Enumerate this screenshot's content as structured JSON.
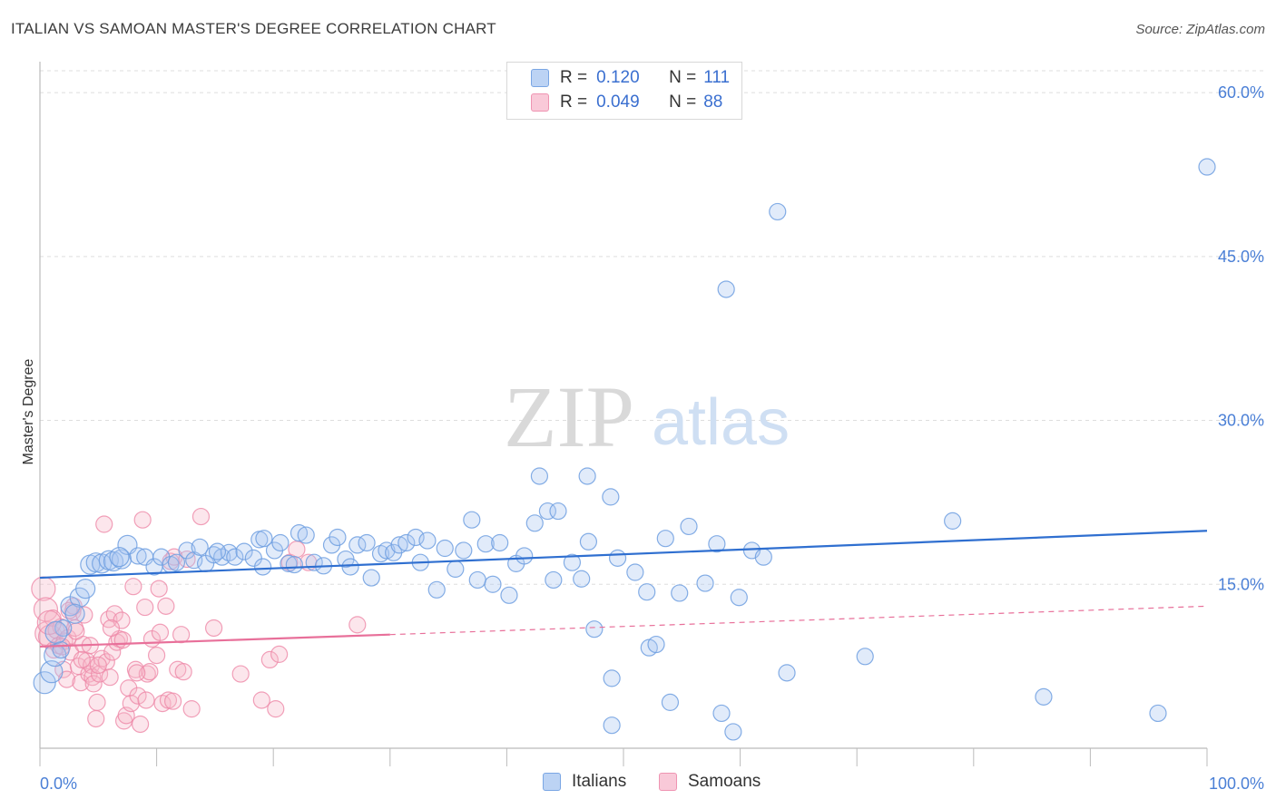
{
  "title": "ITALIAN VS SAMOAN MASTER'S DEGREE CORRELATION CHART",
  "source": "Source: ZipAtlas.com",
  "watermark": {
    "zip": "ZIP",
    "atlas": "atlas"
  },
  "legend": {
    "italians": {
      "r_label": "R =",
      "r_value": "0.120",
      "n_label": "N =",
      "n_value": "111"
    },
    "samoans": {
      "r_label": "R =",
      "r_value": "0.049",
      "n_label": "N =",
      "n_value": "88"
    }
  },
  "bottom_legend": {
    "italians": "Italians",
    "samoans": "Samoans"
  },
  "colors": {
    "italians_fill": "#a9c6f0",
    "italians_stroke": "#6f9fe0",
    "italians_line": "#2f6fd0",
    "samoans_fill": "#f6b6c8",
    "samoans_stroke": "#ee88a8",
    "samoans_line": "#e8709a",
    "tick": "#4a7fd6"
  },
  "chart_data": {
    "type": "scatter",
    "title": "ITALIAN VS SAMOAN MASTER'S DEGREE CORRELATION CHART",
    "xlabel": "",
    "ylabel": "Master's Degree",
    "xlim": [
      0,
      100
    ],
    "ylim": [
      0,
      62
    ],
    "x_tick_labels": [
      "0.0%",
      "100.0%"
    ],
    "y_ticks": [
      15,
      30,
      45,
      60
    ],
    "y_tick_labels": [
      "15.0%",
      "30.0%",
      "45.0%",
      "60.0%"
    ],
    "grid": "horizontal dashed",
    "legend_position": "top-center",
    "series": [
      {
        "name": "Italians",
        "trend": {
          "x": [
            0,
            100
          ],
          "y": [
            15.6,
            19.9
          ],
          "style": "solid"
        },
        "points": [
          [
            0.4,
            6.0
          ],
          [
            1.0,
            7.0
          ],
          [
            1.3,
            8.5
          ],
          [
            1.8,
            9.0
          ],
          [
            2.0,
            11.0
          ],
          [
            2.6,
            13.0
          ],
          [
            3.4,
            13.8
          ],
          [
            3.9,
            14.6
          ],
          [
            4.3,
            16.8
          ],
          [
            4.8,
            17.0
          ],
          [
            5.3,
            16.9
          ],
          [
            5.9,
            17.2
          ],
          [
            6.3,
            17.1
          ],
          [
            7.0,
            17.3
          ],
          [
            7.5,
            18.6
          ],
          [
            8.4,
            17.6
          ],
          [
            9.0,
            17.5
          ],
          [
            9.8,
            16.6
          ],
          [
            10.4,
            17.5
          ],
          [
            11.2,
            16.8
          ],
          [
            11.7,
            17.0
          ],
          [
            12.6,
            18.1
          ],
          [
            13.2,
            17.2
          ],
          [
            13.7,
            18.4
          ],
          [
            14.2,
            16.9
          ],
          [
            14.9,
            17.7
          ],
          [
            15.6,
            17.5
          ],
          [
            16.2,
            17.9
          ],
          [
            16.7,
            17.5
          ],
          [
            17.5,
            18.0
          ],
          [
            18.3,
            17.4
          ],
          [
            18.8,
            19.1
          ],
          [
            19.2,
            19.2
          ],
          [
            19.1,
            16.6
          ],
          [
            20.1,
            18.1
          ],
          [
            20.6,
            18.8
          ],
          [
            21.3,
            16.9
          ],
          [
            21.8,
            16.8
          ],
          [
            22.2,
            19.7
          ],
          [
            22.8,
            19.5
          ],
          [
            23.5,
            17.0
          ],
          [
            24.3,
            16.7
          ],
          [
            25.0,
            18.6
          ],
          [
            25.5,
            19.3
          ],
          [
            26.2,
            17.3
          ],
          [
            26.6,
            16.6
          ],
          [
            27.2,
            18.6
          ],
          [
            28.0,
            18.8
          ],
          [
            28.4,
            15.6
          ],
          [
            29.2,
            17.8
          ],
          [
            29.7,
            18.1
          ],
          [
            30.3,
            17.9
          ],
          [
            30.8,
            18.6
          ],
          [
            31.4,
            18.8
          ],
          [
            32.2,
            19.3
          ],
          [
            32.6,
            17.0
          ],
          [
            33.2,
            19.0
          ],
          [
            34.0,
            14.5
          ],
          [
            34.7,
            18.3
          ],
          [
            35.6,
            16.4
          ],
          [
            36.3,
            18.1
          ],
          [
            37.0,
            20.9
          ],
          [
            37.5,
            15.4
          ],
          [
            38.2,
            18.7
          ],
          [
            38.8,
            15.0
          ],
          [
            39.4,
            18.8
          ],
          [
            40.2,
            14.0
          ],
          [
            40.8,
            16.9
          ],
          [
            41.5,
            17.6
          ],
          [
            42.4,
            20.6
          ],
          [
            42.8,
            24.9
          ],
          [
            43.5,
            21.7
          ],
          [
            44.4,
            21.7
          ],
          [
            44.0,
            15.4
          ],
          [
            45.6,
            17.0
          ],
          [
            46.4,
            15.5
          ],
          [
            47.0,
            18.9
          ],
          [
            46.9,
            24.9
          ],
          [
            47.5,
            10.9
          ],
          [
            48.9,
            23.0
          ],
          [
            49.0,
            6.4
          ],
          [
            49.5,
            17.4
          ],
          [
            49.0,
            2.1
          ],
          [
            51.0,
            16.1
          ],
          [
            52.0,
            14.3
          ],
          [
            52.2,
            9.2
          ],
          [
            52.8,
            9.5
          ],
          [
            53.6,
            19.2
          ],
          [
            54.0,
            4.2
          ],
          [
            54.8,
            14.2
          ],
          [
            55.6,
            20.3
          ],
          [
            57.0,
            15.1
          ],
          [
            58.0,
            18.7
          ],
          [
            58.4,
            3.2
          ],
          [
            58.8,
            42.0
          ],
          [
            59.4,
            1.5
          ],
          [
            59.9,
            13.8
          ],
          [
            61.0,
            18.1
          ],
          [
            62.0,
            17.5
          ],
          [
            63.2,
            49.1
          ],
          [
            64.0,
            6.9
          ],
          [
            70.7,
            8.4
          ],
          [
            78.2,
            20.8
          ],
          [
            86.0,
            4.7
          ],
          [
            95.8,
            3.2
          ],
          [
            100.0,
            53.2
          ],
          [
            1.4,
            10.6
          ],
          [
            3.0,
            12.3
          ],
          [
            6.8,
            17.5
          ],
          [
            15.2,
            18.0
          ]
        ]
      },
      {
        "name": "Samoans",
        "trend": {
          "x": [
            0,
            30,
            100
          ],
          "y": [
            9.3,
            10.4,
            13.0
          ],
          "style": "solid to 30, dashed after"
        },
        "points": [
          [
            0.3,
            14.6
          ],
          [
            0.5,
            12.7
          ],
          [
            0.6,
            10.5
          ],
          [
            0.9,
            10.2
          ],
          [
            1.1,
            11.9
          ],
          [
            1.2,
            9.0
          ],
          [
            1.4,
            10.8
          ],
          [
            1.6,
            9.4
          ],
          [
            1.8,
            11.1
          ],
          [
            2.0,
            7.2
          ],
          [
            2.1,
            9.8
          ],
          [
            2.3,
            6.3
          ],
          [
            2.4,
            10.1
          ],
          [
            2.6,
            8.8
          ],
          [
            2.8,
            12.5
          ],
          [
            2.9,
            13.0
          ],
          [
            3.0,
            11.0
          ],
          [
            3.3,
            7.5
          ],
          [
            3.5,
            6.0
          ],
          [
            3.7,
            9.5
          ],
          [
            3.8,
            12.2
          ],
          [
            4.0,
            8.0
          ],
          [
            4.2,
            6.8
          ],
          [
            4.4,
            7.6
          ],
          [
            4.5,
            6.5
          ],
          [
            4.6,
            5.9
          ],
          [
            4.8,
            2.7
          ],
          [
            4.9,
            4.2
          ],
          [
            5.1,
            6.8
          ],
          [
            5.3,
            8.2
          ],
          [
            5.5,
            20.5
          ],
          [
            5.7,
            7.9
          ],
          [
            5.9,
            11.8
          ],
          [
            6.0,
            6.5
          ],
          [
            6.2,
            8.8
          ],
          [
            6.4,
            12.3
          ],
          [
            6.6,
            9.7
          ],
          [
            6.8,
            10.0
          ],
          [
            7.0,
            11.7
          ],
          [
            7.2,
            2.5
          ],
          [
            7.4,
            3.0
          ],
          [
            7.6,
            5.5
          ],
          [
            7.8,
            4.1
          ],
          [
            8.0,
            14.8
          ],
          [
            8.2,
            7.2
          ],
          [
            8.4,
            4.8
          ],
          [
            8.6,
            2.2
          ],
          [
            8.8,
            20.9
          ],
          [
            9.0,
            12.9
          ],
          [
            9.2,
            6.8
          ],
          [
            9.4,
            7.0
          ],
          [
            9.6,
            10.0
          ],
          [
            10.0,
            8.5
          ],
          [
            10.2,
            14.6
          ],
          [
            10.5,
            4.1
          ],
          [
            10.8,
            13.0
          ],
          [
            11.0,
            4.4
          ],
          [
            11.2,
            17.1
          ],
          [
            11.5,
            17.5
          ],
          [
            11.8,
            7.2
          ],
          [
            12.3,
            7.0
          ],
          [
            12.6,
            17.3
          ],
          [
            13.0,
            3.6
          ],
          [
            13.8,
            21.2
          ],
          [
            14.9,
            11.0
          ],
          [
            17.2,
            6.8
          ],
          [
            19.0,
            4.4
          ],
          [
            19.7,
            8.1
          ],
          [
            20.2,
            3.6
          ],
          [
            20.5,
            8.6
          ],
          [
            21.4,
            17.0
          ],
          [
            22.0,
            18.2
          ],
          [
            23.0,
            17.0
          ],
          [
            27.2,
            11.3
          ],
          [
            1.9,
            9.3
          ],
          [
            2.5,
            12.6
          ],
          [
            3.1,
            10.7
          ],
          [
            4.3,
            9.4
          ],
          [
            5.0,
            7.6
          ],
          [
            6.1,
            11.0
          ],
          [
            7.1,
            9.9
          ],
          [
            8.3,
            6.9
          ],
          [
            9.1,
            4.4
          ],
          [
            10.3,
            10.6
          ],
          [
            11.4,
            4.3
          ],
          [
            12.1,
            10.4
          ],
          [
            3.6,
            8.1
          ],
          [
            0.8,
            11.5
          ]
        ]
      }
    ]
  }
}
